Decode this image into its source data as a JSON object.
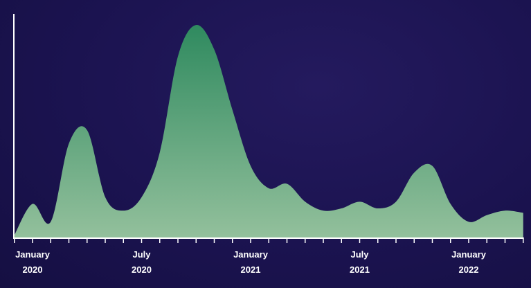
{
  "chart_data": {
    "type": "area",
    "categories": [
      null,
      "January\n2020",
      null,
      null,
      null,
      null,
      null,
      "July\n2020",
      null,
      null,
      null,
      null,
      null,
      "January\n2021",
      null,
      null,
      null,
      null,
      null,
      "July\n2021",
      null,
      null,
      null,
      null,
      null,
      "January\n2022",
      null,
      null,
      null
    ],
    "values": [
      1,
      15,
      7,
      42,
      48,
      18,
      12,
      18,
      38,
      81,
      95,
      84,
      57,
      32,
      22,
      24,
      16,
      12,
      13,
      16,
      13,
      16,
      29,
      32,
      15,
      7,
      10,
      12,
      11
    ],
    "color": "#2f8a5f",
    "ylim": [
      0,
      100
    ]
  }
}
